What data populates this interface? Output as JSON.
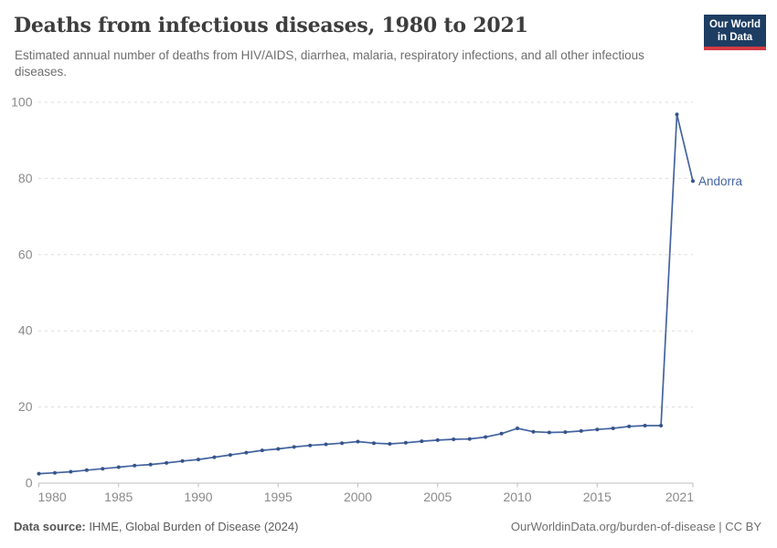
{
  "header": {
    "title": "Deaths from infectious diseases, 1980 to 2021",
    "subtitle": "Estimated annual number of deaths from HIV/AIDS, diarrhea, malaria, respiratory infections, and all other infectious diseases.",
    "logo": {
      "line1": "Our World",
      "line2": "in Data",
      "bg_color": "#1d3d63",
      "accent_color": "#d23a42"
    }
  },
  "chart_data": {
    "type": "line",
    "title": "Deaths from infectious diseases, 1980 to 2021",
    "xlabel": "",
    "ylabel": "",
    "xlim": [
      1980,
      2021
    ],
    "ylim": [
      0,
      100
    ],
    "x_ticks": [
      1980,
      1985,
      1990,
      1995,
      2000,
      2005,
      2010,
      2015,
      2021
    ],
    "y_ticks": [
      0,
      20,
      40,
      60,
      80,
      100
    ],
    "grid": "horizontal-dashed",
    "legend_position": "end-of-line-label",
    "colors": {
      "grid": "#dcdcdc",
      "axis": "#bdbdbd",
      "tick_text": "#8a8a8a"
    },
    "series": [
      {
        "name": "Andorra",
        "color": "#44639f",
        "dot_color": "#35548c",
        "x": [
          1980,
          1981,
          1982,
          1983,
          1984,
          1985,
          1986,
          1987,
          1988,
          1989,
          1990,
          1991,
          1992,
          1993,
          1994,
          1995,
          1996,
          1997,
          1998,
          1999,
          2000,
          2001,
          2002,
          2003,
          2004,
          2005,
          2006,
          2007,
          2008,
          2009,
          2010,
          2011,
          2012,
          2013,
          2014,
          2015,
          2016,
          2017,
          2018,
          2019,
          2020,
          2021
        ],
        "values": [
          2.5,
          2.7,
          3.0,
          3.4,
          3.8,
          4.2,
          4.6,
          4.9,
          5.3,
          5.8,
          6.2,
          6.8,
          7.4,
          8.0,
          8.6,
          9.0,
          9.5,
          9.9,
          10.2,
          10.5,
          10.9,
          10.5,
          10.3,
          10.6,
          11.0,
          11.3,
          11.5,
          11.6,
          12.1,
          13.0,
          14.4,
          13.5,
          13.3,
          13.4,
          13.7,
          14.1,
          14.4,
          14.9,
          15.1,
          15.1,
          96.8,
          79.3
        ]
      }
    ]
  },
  "footer": {
    "source_label": "Data source:",
    "source_text": "IHME, Global Burden of Disease (2024)",
    "link_text": "OurWorldinData.org/burden-of-disease | CC BY"
  }
}
